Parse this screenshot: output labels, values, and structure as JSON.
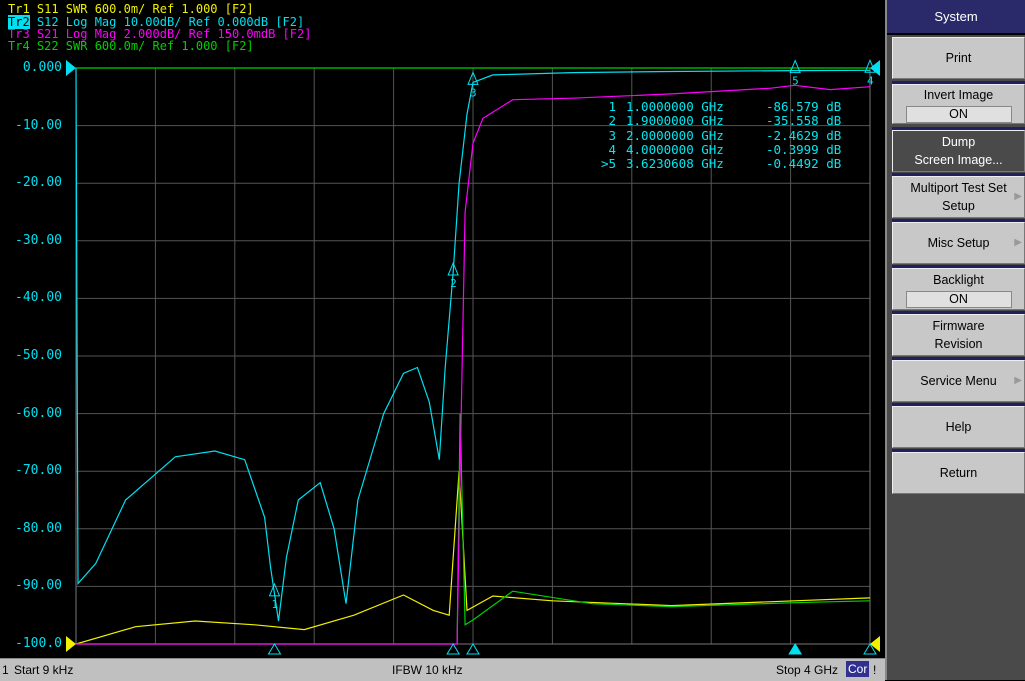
{
  "traces_header": [
    {
      "id": "Tr1",
      "text": "Tr1 S11 SWR 600.0m/ Ref 1.000 [F2]",
      "color": "#f0f000",
      "active": false
    },
    {
      "id": "Tr2",
      "text": " S12 Log Mag 10.00dB/ Ref 0.000dB [F2]",
      "color": "#00e0f0",
      "active": true
    },
    {
      "id": "Tr3",
      "text": "Tr3 S21 Log Mag 2.000dB/ Ref 150.0mdB [F2]",
      "color": "#ff00ff",
      "active": false
    },
    {
      "id": "Tr4",
      "text": "Tr4 S22 SWR 600.0m/ Ref 1.000 [F2]",
      "color": "#00d000",
      "active": false
    }
  ],
  "chart_data": {
    "type": "line",
    "xlabel_start": "Start 9 kHz",
    "xlabel_stop": "Stop 4 GHz",
    "xlim_ghz": [
      9e-06,
      4
    ],
    "ylim": [
      -100,
      0
    ],
    "yticks": [
      "0.000",
      "-10.00",
      "-20.00",
      "-30.00",
      "-40.00",
      "-50.00",
      "-60.00",
      "-70.00",
      "-80.00",
      "-90.00",
      "-100.0"
    ],
    "grid": true,
    "series": [
      {
        "name": "Tr2 S12",
        "unit": "dB",
        "color": "#00e0f0",
        "points": [
          [
            0,
            0
          ],
          [
            0.01,
            -89.5
          ],
          [
            0.1,
            -86
          ],
          [
            0.25,
            -75
          ],
          [
            0.5,
            -67.5
          ],
          [
            0.7,
            -66.5
          ],
          [
            0.85,
            -68
          ],
          [
            0.95,
            -78
          ],
          [
            0.98,
            -86.6
          ],
          [
            1.02,
            -96
          ],
          [
            1.06,
            -85
          ],
          [
            1.12,
            -75
          ],
          [
            1.23,
            -72
          ],
          [
            1.3,
            -80
          ],
          [
            1.36,
            -93
          ],
          [
            1.42,
            -75
          ],
          [
            1.55,
            -60
          ],
          [
            1.65,
            -53
          ],
          [
            1.72,
            -52
          ],
          [
            1.78,
            -58
          ],
          [
            1.83,
            -68
          ],
          [
            1.86,
            -52
          ],
          [
            1.9,
            -35.6
          ],
          [
            1.93,
            -20
          ],
          [
            1.97,
            -8
          ],
          [
            2.0,
            -2.5
          ],
          [
            2.1,
            -1.2
          ],
          [
            2.5,
            -0.8
          ],
          [
            3.0,
            -0.6
          ],
          [
            3.62,
            -0.45
          ],
          [
            4.0,
            -0.4
          ]
        ]
      },
      {
        "name": "Tr3 S21",
        "unit": "dB",
        "color": "#ff00ff",
        "points": [
          [
            0,
            -19.85
          ],
          [
            1.92,
            -19.85
          ],
          [
            1.935,
            -13.85
          ],
          [
            1.96,
            -4.85
          ],
          [
            2.0,
            -2.46
          ],
          [
            2.05,
            -1.6
          ],
          [
            2.2,
            -0.95
          ],
          [
            2.5,
            -0.9
          ],
          [
            3.0,
            -0.75
          ],
          [
            3.5,
            -0.55
          ],
          [
            3.62,
            -0.45
          ],
          [
            3.8,
            -0.6
          ],
          [
            4.0,
            -0.5
          ]
        ]
      },
      {
        "name": "Tr1 S11",
        "unit": "SWR",
        "color": "#f0f000",
        "points": [
          [
            0,
            1.0
          ],
          [
            0.3,
            1.18
          ],
          [
            0.6,
            1.24
          ],
          [
            0.9,
            1.2
          ],
          [
            1.15,
            1.15
          ],
          [
            1.4,
            1.3
          ],
          [
            1.65,
            1.51
          ],
          [
            1.8,
            1.35
          ],
          [
            1.88,
            1.3
          ],
          [
            1.93,
            2.8
          ],
          [
            1.97,
            1.35
          ],
          [
            2.1,
            1.5
          ],
          [
            2.4,
            1.45
          ],
          [
            3.0,
            1.4
          ],
          [
            3.62,
            1.45
          ],
          [
            4.0,
            1.48
          ]
        ]
      },
      {
        "name": "Tr4 S22",
        "unit": "SWR",
        "color": "#00d000",
        "points": [
          [
            0,
            1.0
          ],
          [
            1.92,
            1.0
          ],
          [
            1.935,
            3.4
          ],
          [
            1.96,
            1.2
          ],
          [
            2.0,
            1.25
          ],
          [
            2.2,
            1.55
          ],
          [
            2.6,
            1.42
          ],
          [
            3.0,
            1.39
          ],
          [
            3.62,
            1.43
          ],
          [
            4.0,
            1.45
          ]
        ]
      }
    ],
    "markers": [
      {
        "label": "1",
        "freq": "1.0000000 GHz",
        "value": "-86.579 dB"
      },
      {
        "label": "2",
        "freq": "1.9000000 GHz",
        "value": "-35.558 dB"
      },
      {
        "label": "3",
        "freq": "2.0000000 GHz",
        "value": "-2.4629 dB"
      },
      {
        "label": "4",
        "freq": "4.0000000 GHz",
        "value": "-0.3999 dB"
      },
      {
        "label": ">5",
        "freq": "3.6230608 GHz",
        "value": "-0.4492 dB"
      }
    ],
    "marker_freqs_ghz": [
      1.0,
      1.9,
      2.0,
      4.0,
      3.6230608
    ]
  },
  "status": {
    "channel": "1",
    "start": "Start 9 kHz",
    "ifbw": "IFBW 10 kHz",
    "stop": "Stop 4 GHz",
    "cor": "Cor",
    "flag": "!"
  },
  "panel": {
    "title": "System",
    "buttons": [
      {
        "label": "Print"
      },
      {
        "label": "Invert Image",
        "value": "ON"
      },
      {
        "label": "Dump\nScreen Image..."
      },
      {
        "label": "Multiport Test Set\nSetup",
        "submenu": true
      },
      {
        "label": "Misc Setup",
        "submenu": true
      },
      {
        "label": "Backlight",
        "value": "ON"
      },
      {
        "label": "Firmware\nRevision"
      },
      {
        "label": "Service Menu",
        "submenu": true
      },
      {
        "label": "Help"
      },
      {
        "label": "Return"
      }
    ]
  }
}
